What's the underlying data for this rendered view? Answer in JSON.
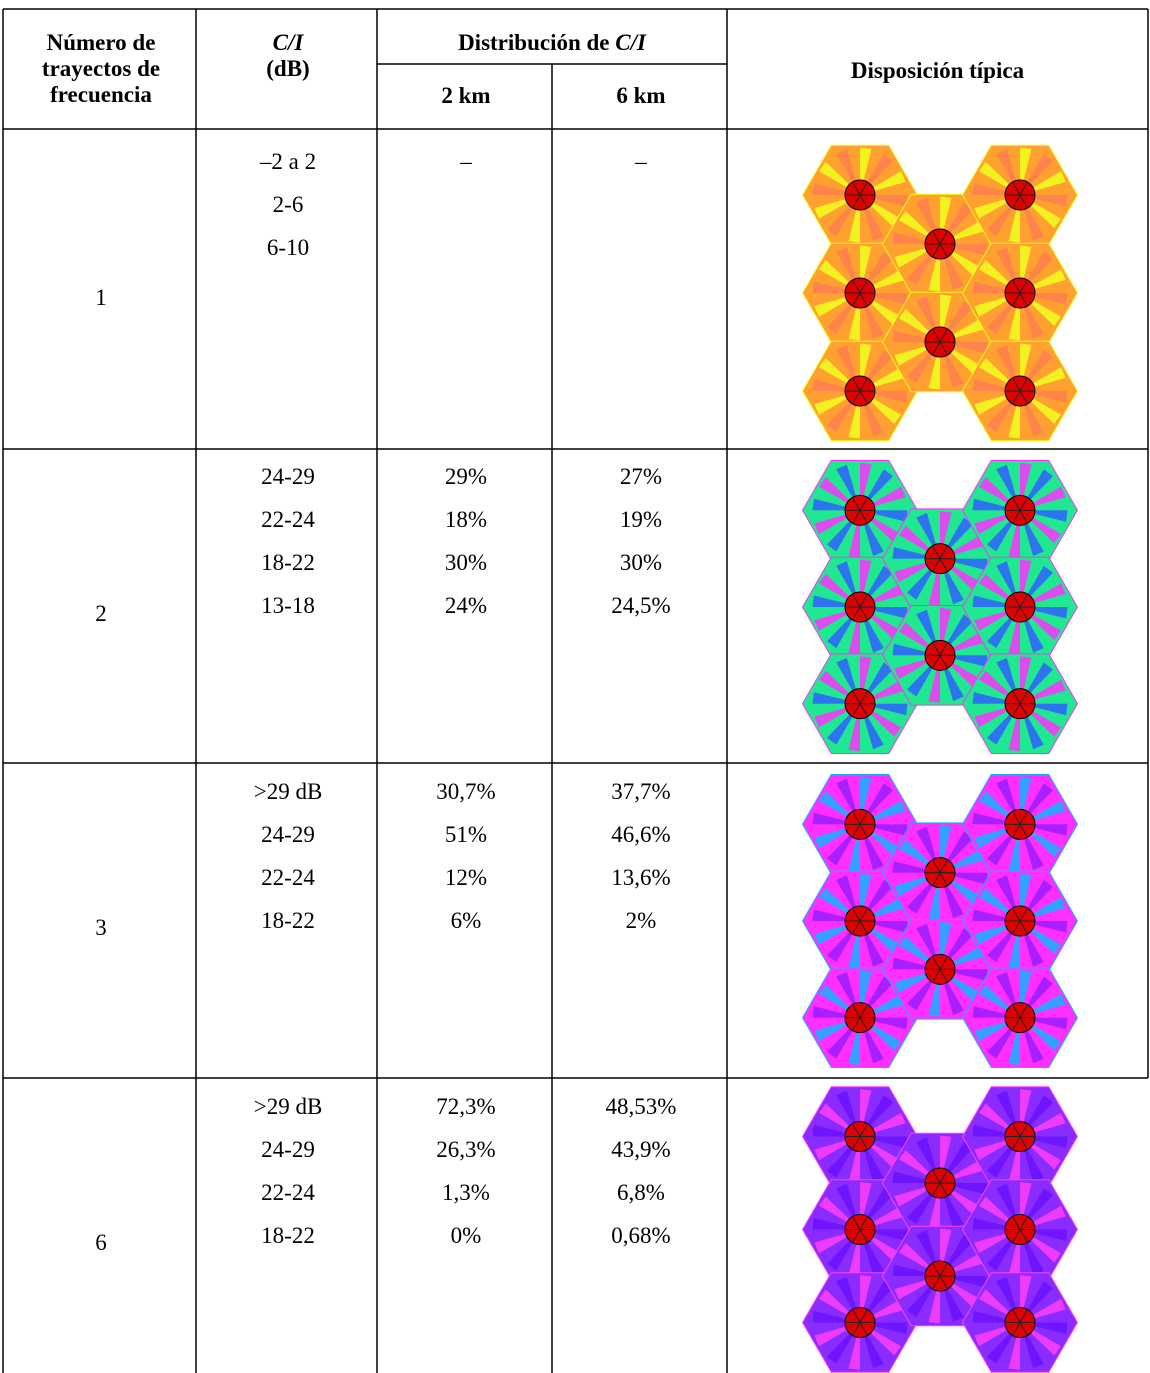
{
  "headers": {
    "num_paths_line1": "Número de",
    "num_paths_line2": "trayectos de",
    "num_paths_line3": "frecuencia",
    "ci_top": "C/I",
    "ci_unit": "(dB)",
    "distribution_prefix": "Distribución de ",
    "distribution_ci": "C/I",
    "km2": "2 km",
    "km6": "6 km",
    "layout": "Disposición típica"
  },
  "rows": [
    {
      "paths": "1",
      "ci": [
        "–2 a 2",
        "2-6",
        "6-10"
      ],
      "d2": [
        "–"
      ],
      "d6": [
        "–"
      ],
      "pattern": "yellow-orange-hexagon-pattern"
    },
    {
      "paths": "2",
      "ci": [
        "24-29",
        "22-24",
        "18-22",
        "13-18"
      ],
      "d2": [
        "29%",
        "18%",
        "30%",
        "24%"
      ],
      "d6": [
        "27%",
        "19%",
        "30%",
        "24,5%"
      ],
      "pattern": "green-magenta-blue-hexagon-pattern"
    },
    {
      "paths": "3",
      "ci": [
        ">29 dB",
        "24-29",
        "22-24",
        "18-22"
      ],
      "d2": [
        "30,7%",
        "51%",
        "12%",
        "6%"
      ],
      "d6": [
        "37,7%",
        "46,6%",
        "13,6%",
        "2%"
      ],
      "pattern": "magenta-cyan-hexagon-pattern"
    },
    {
      "paths": "6",
      "ci": [
        ">29 dB",
        "24-29",
        "22-24",
        "18-22"
      ],
      "d2": [
        "72,3%",
        "26,3%",
        "1,3%",
        "0%"
      ],
      "d6": [
        "48,53%",
        "43,9%",
        "6,8%",
        "0,68%"
      ],
      "pattern": "violet-hexagon-pattern"
    }
  ],
  "colors": {
    "r1": [
      "#ffa030",
      "#f2ff1e",
      "#ff7f50",
      "#e10000"
    ],
    "r2": [
      "#20e890",
      "#ff30ff",
      "#3060ff",
      "#e10000"
    ],
    "r3": [
      "#ff30ff",
      "#10b4ff",
      "#9a1cff",
      "#e10000"
    ],
    "r4": [
      "#8a2cff",
      "#ff40ff",
      "#6a10ff",
      "#e10000"
    ]
  }
}
